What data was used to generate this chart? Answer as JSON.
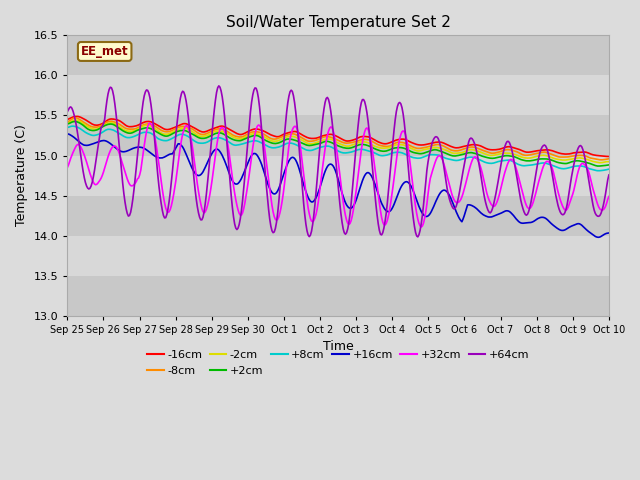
{
  "title": "Soil/Water Temperature Set 2",
  "xlabel": "Time",
  "ylabel": "Temperature (C)",
  "ylim": [
    13.0,
    16.5
  ],
  "annotation_text": "EE_met",
  "annotation_color": "#8B0000",
  "annotation_bg": "#FFFACD",
  "annotation_border": "#8B6914",
  "background_color": "#DCDCDC",
  "plot_bg_light": "#E8E8E8",
  "plot_bg_dark": "#D0D0D0",
  "series": [
    {
      "label": "-16cm",
      "color": "#FF0000"
    },
    {
      "label": "-8cm",
      "color": "#FF8C00"
    },
    {
      "label": "-2cm",
      "color": "#DDDD00"
    },
    {
      "label": "+2cm",
      "color": "#00BB00"
    },
    {
      "label": "+8cm",
      "color": "#00CCCC"
    },
    {
      "label": "+16cm",
      "color": "#0000CC"
    },
    {
      "label": "+32cm",
      "color": "#FF00FF"
    },
    {
      "label": "+64cm",
      "color": "#9900BB"
    }
  ],
  "xtick_labels": [
    "Sep 25",
    "Sep 26",
    "Sep 27",
    "Sep 28",
    "Sep 29",
    "Sep 30",
    "Oct 1",
    "Oct 2",
    "Oct 3",
    "Oct 4",
    "Oct 5",
    "Oct 6",
    "Oct 7",
    "Oct 8",
    "Oct 9",
    "Oct 10"
  ],
  "n_points": 480
}
